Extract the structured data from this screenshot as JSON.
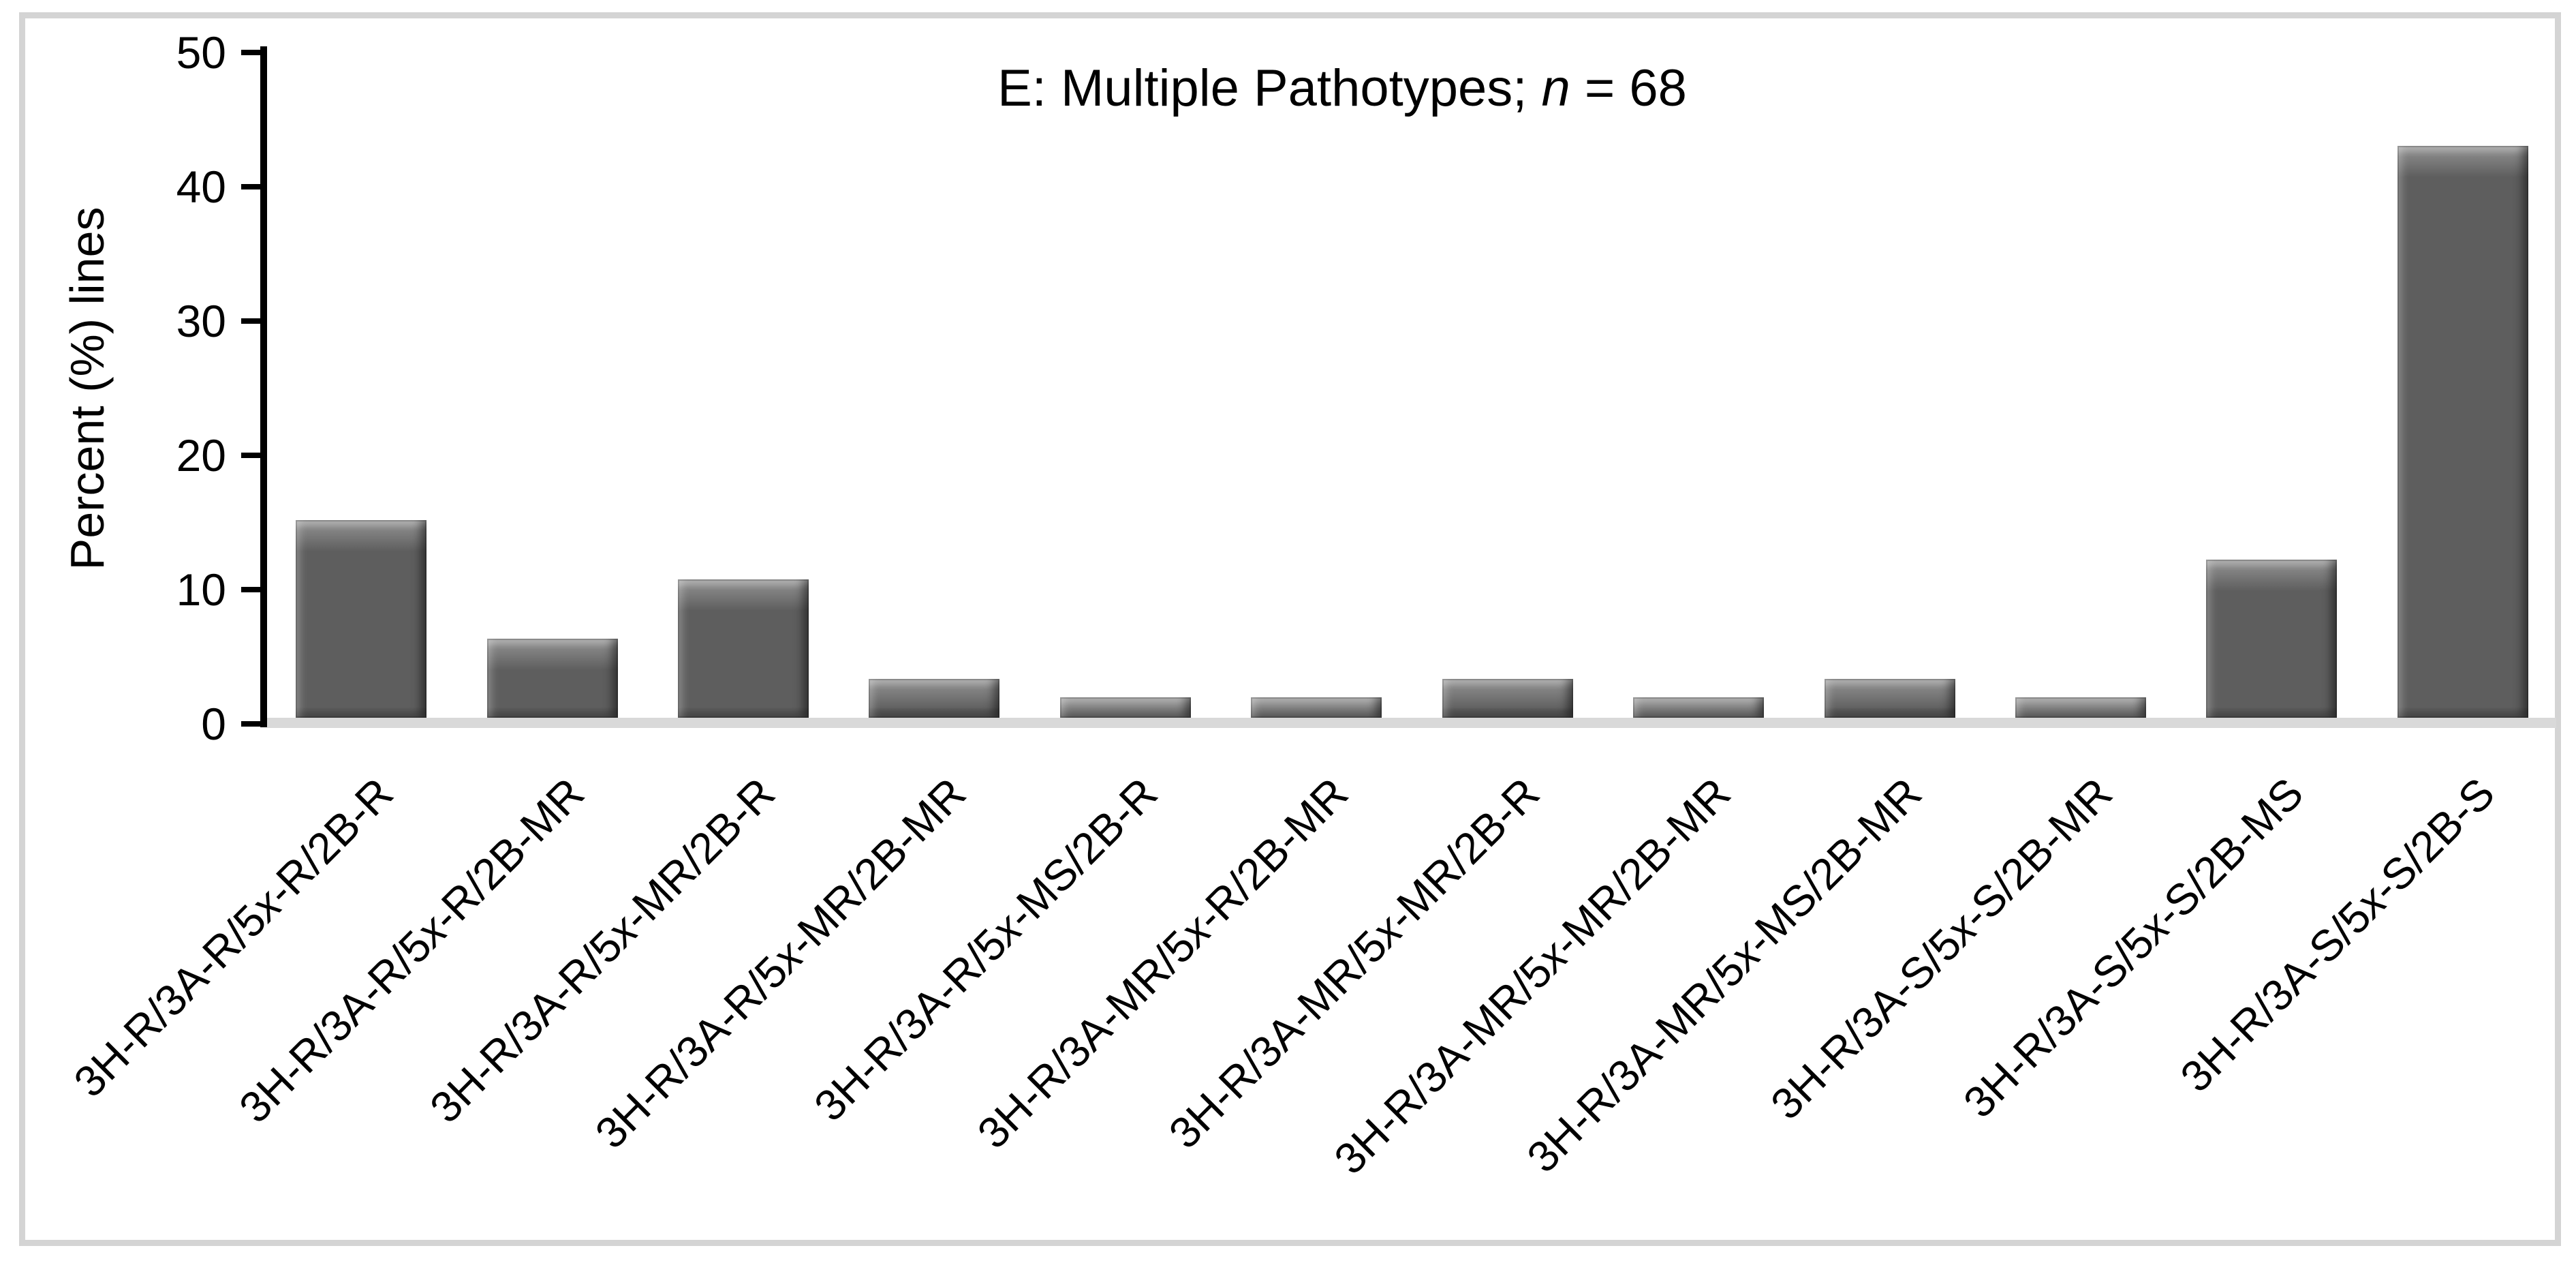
{
  "style": {
    "bar_color": "#5e5e5e",
    "bar_highlight": "#a8a8a8",
    "baseline_color": "#d9d9d9",
    "frame_color": "#d4d4d4",
    "text_color": "#000000",
    "background": "#ffffff"
  },
  "chart_data": {
    "type": "bar",
    "title": "E: Multiple Pathotypes; n = 68",
    "title_parts": {
      "prefix": "E: Multiple Pathotypes; ",
      "n_italic": "n",
      "suffix": " = 68"
    },
    "n": 68,
    "ylabel": "Percent (%) lines",
    "xlabel": "",
    "ylim": [
      0,
      50
    ],
    "yticks": [
      0,
      10,
      20,
      30,
      40,
      50
    ],
    "ytick_labels": [
      "0",
      "10",
      "20",
      "30",
      "40",
      "50"
    ],
    "grid": false,
    "legend": "none",
    "categories": [
      "3H-R/3A-R/5x-R/2B-R",
      "3H-R/3A-R/5x-R/2B-MR",
      "3H-R/3A-R/5x-MR/2B-R",
      "3H-R/3A-R/5x-MR/2B-MR",
      "3H-R/3A-R/5x-MS/2B-R",
      "3H-R/3A-MR/5x-R/2B-MR",
      "3H-R/3A-MR/5x-MR/2B-R",
      "3H-R/3A-MR/5x-MR/2B-MR",
      "3H-R/3A-MR/5x-MS/2B-MR",
      "3H-R/3A-S/5x-S/2B-MR",
      "3H-R/3A-S/5x-S/2B-MS",
      "3H-R/3A-S/5x-S/2B-S"
    ],
    "values": [
      14.7,
      5.9,
      10.3,
      2.9,
      1.5,
      1.5,
      2.9,
      1.5,
      2.9,
      1.5,
      11.8,
      42.6
    ]
  }
}
